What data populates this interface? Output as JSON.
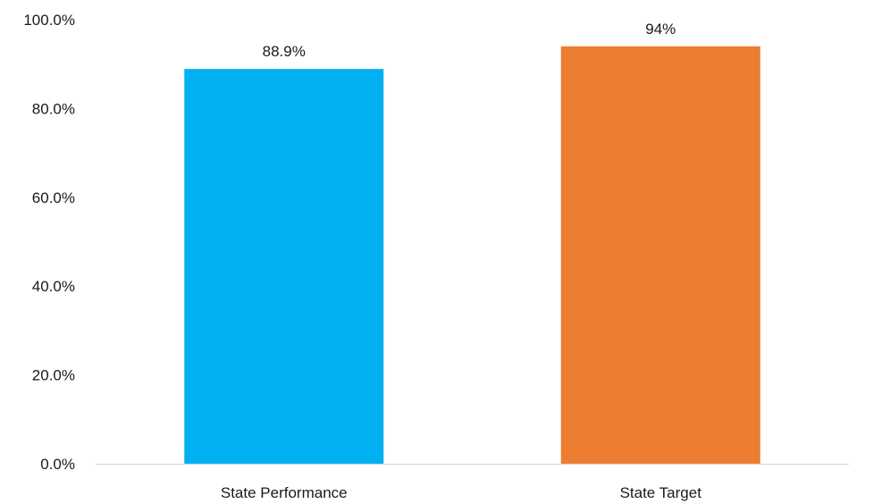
{
  "chart_data": {
    "type": "bar",
    "title": "",
    "xlabel": "",
    "ylabel": "",
    "categories": [
      "State Performance",
      "State Target"
    ],
    "values": [
      88.9,
      94
    ],
    "data_labels": [
      "88.9%",
      "94%"
    ],
    "colors": [
      "#00B0F0",
      "#ED7D31"
    ],
    "ylim": [
      0,
      100
    ],
    "y_ticks": [
      0,
      20,
      40,
      60,
      80,
      100
    ],
    "y_tick_labels": [
      "0.0%",
      "20.0%",
      "40.0%",
      "60.0%",
      "80.0%",
      "100.0%"
    ],
    "grid": false,
    "legend": "none"
  }
}
